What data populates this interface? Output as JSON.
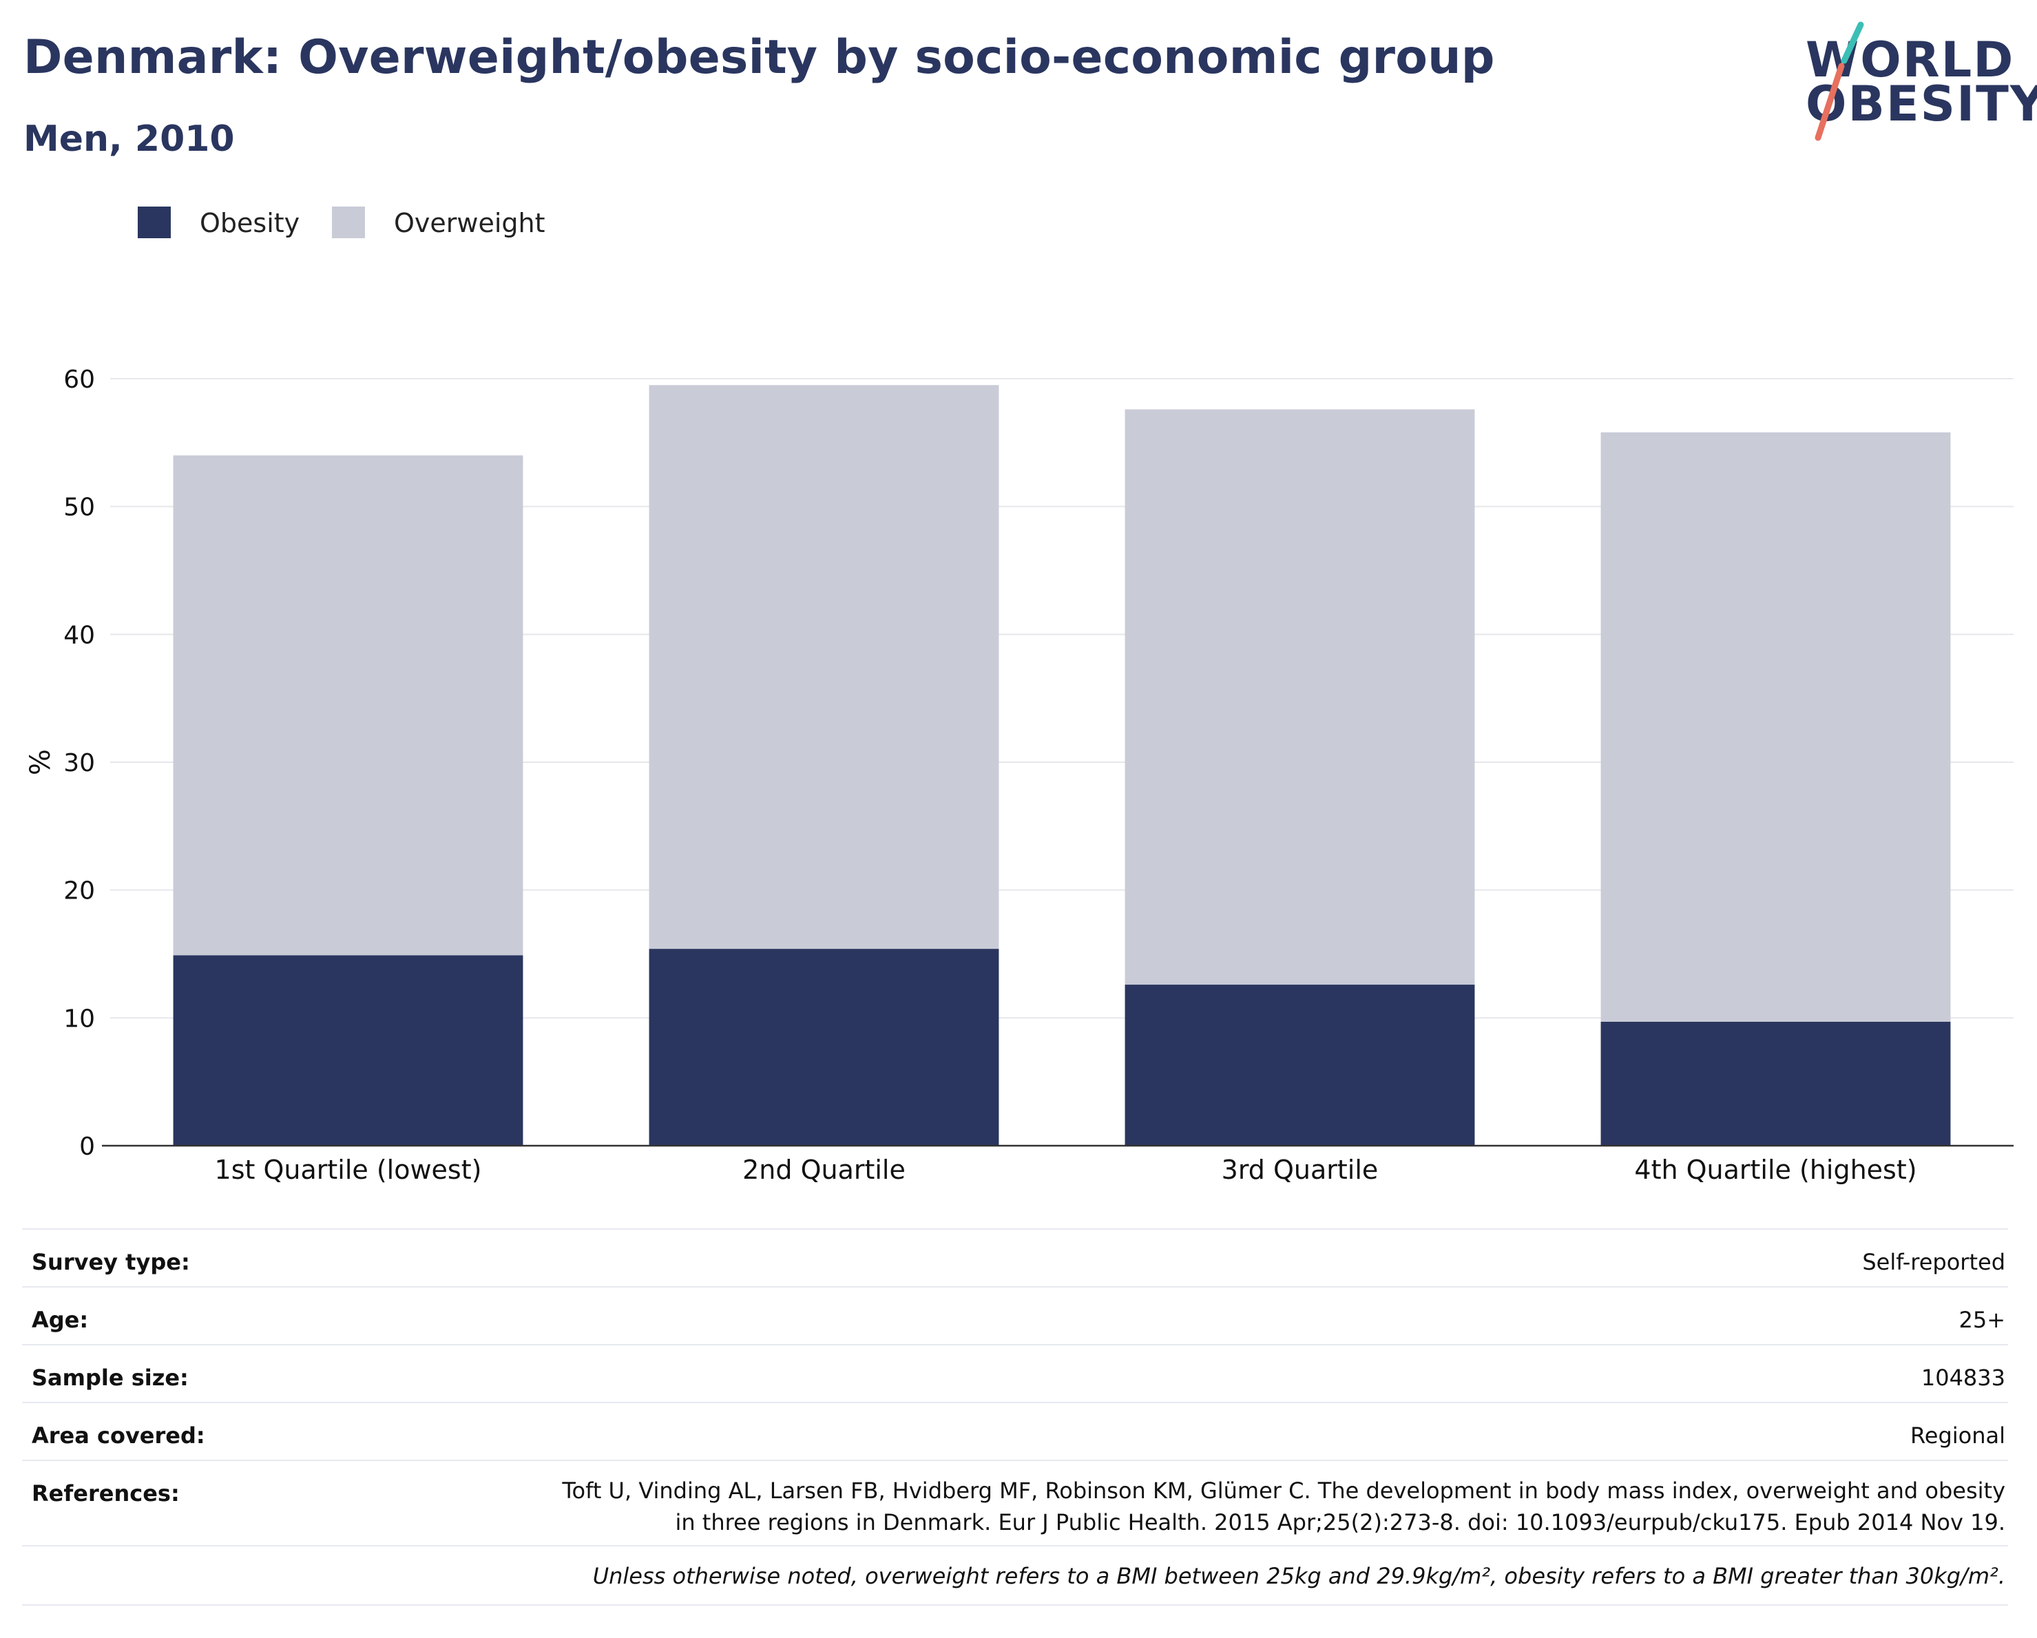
{
  "header": {
    "title": "Denmark: Overweight/obesity by socio-economic group",
    "subtitle": "Men, 2010"
  },
  "logo": {
    "line1": "WORLD",
    "line2": "OBESITY",
    "colors": {
      "text": "#2a365f",
      "teal": "#3bbfb5",
      "coral": "#e7705f"
    }
  },
  "legend": [
    {
      "label": "Obesity",
      "color": "#2a365f"
    },
    {
      "label": "Overweight",
      "color": "#c9cbd7"
    }
  ],
  "chart_data": {
    "type": "bar",
    "stacked": true,
    "categories": [
      "1st Quartile (lowest)",
      "2nd Quartile",
      "3rd Quartile",
      "4th Quartile (highest)"
    ],
    "series": [
      {
        "name": "Obesity",
        "color": "#2a365f",
        "values": [
          14.9,
          15.4,
          12.6,
          9.7
        ]
      },
      {
        "name": "Overweight",
        "color": "#c9cbd7",
        "values": [
          39.1,
          44.1,
          45.0,
          46.1
        ]
      }
    ],
    "ylabel": "%",
    "ylim": [
      0,
      60
    ],
    "yticks": [
      0,
      10,
      20,
      30,
      40,
      50,
      60
    ],
    "grid": true,
    "legend_position": "top-left"
  },
  "info": {
    "survey_type": {
      "label": "Survey type:",
      "value": "Self-reported"
    },
    "age": {
      "label": "Age:",
      "value": "25+"
    },
    "sample_size": {
      "label": "Sample size:",
      "value": "104833"
    },
    "area_covered": {
      "label": "Area covered:",
      "value": "Regional"
    },
    "references": {
      "label": "References:",
      "value": "Toft U, Vinding AL, Larsen FB, Hvidberg MF, Robinson KM, Glümer C. The development in body mass index, overweight and obesity in three regions in Denmark. Eur J Public Health. 2015 Apr;25(2):273-8. doi: 10.1093/eurpub/cku175. Epub 2014 Nov 19."
    },
    "note": "Unless otherwise noted, overweight refers to a BMI between 25kg and 29.9kg/m², obesity refers to a BMI greater than 30kg/m²."
  }
}
